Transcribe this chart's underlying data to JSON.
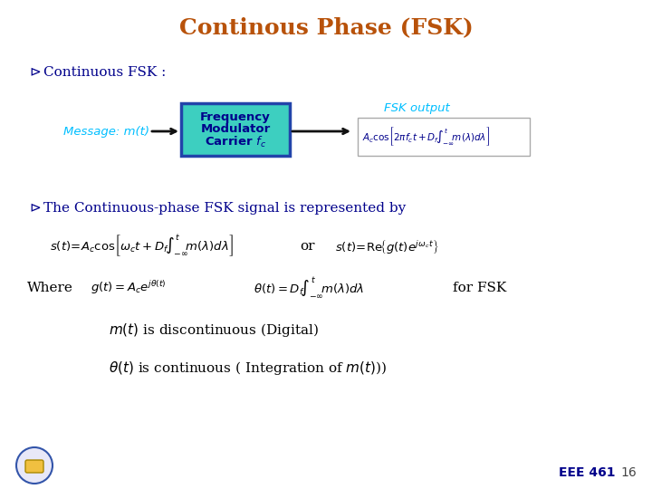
{
  "title": "Continous Phase (FSK)",
  "title_color": "#B8520A",
  "title_fontsize": 18,
  "bg_color": "#FFFFFF",
  "bullet_color": "#00008B",
  "bullet_text_color": "#00008B",
  "cyan_text_color": "#00BFFF",
  "box_fill_color": "#3DCFC0",
  "box_edge_color": "#2244AA",
  "box_text_color": "#00008B",
  "message_label": "Message: m(t)",
  "fsk_output_label": "FSK output",
  "bullet1": "Continuous FSK :",
  "bullet2": "The Continuous-phase FSK signal is represented by",
  "where_text": "Where",
  "for_fsk_text": "for FSK",
  "mt_text": "is discontinuous (Digital)",
  "theta_text": "is continuous ( Integration of ",
  "eee_text": "EEE 461",
  "page_num": "16",
  "footer_color": "#00008B",
  "arrow_color": "#111111"
}
